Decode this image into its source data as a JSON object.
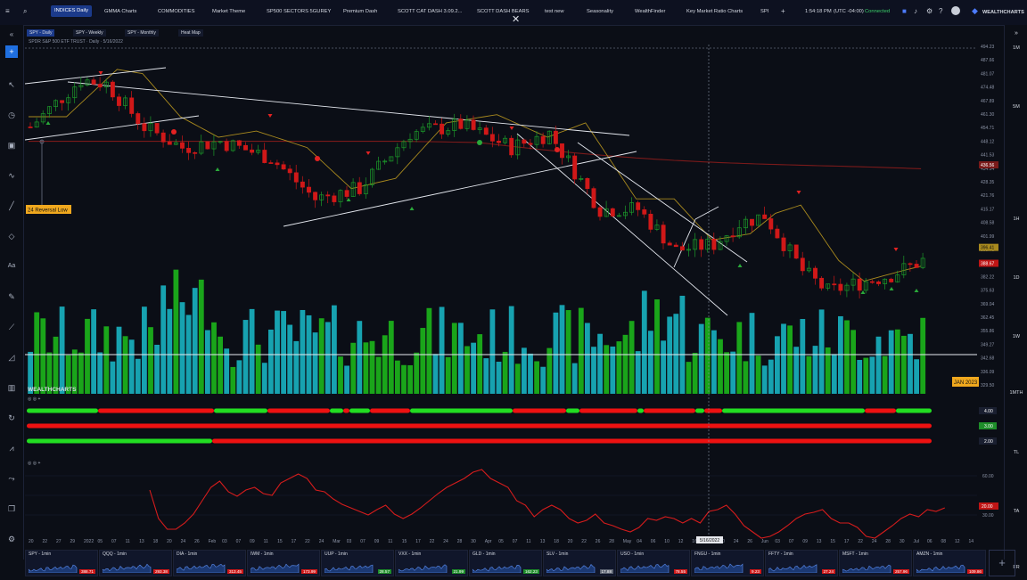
{
  "topbar": {
    "tabs": [
      "INDICES Daily",
      "GMMA Charts",
      "COMMODITIES",
      "Market Theme",
      "SP500 SECTORS 5GUREY",
      "Premium Dash",
      "SCOTT CAT DASH 3.09.2...",
      "SCOTT DASH BEARS",
      "test new",
      "Seasonality",
      "WealthFinder",
      "Key Market Ratio Charts",
      "SPI"
    ],
    "time": "1:54:18 PM",
    "timezone": "(UTC -04:00)",
    "status": "Connected",
    "brand": "WEALTHCHARTS"
  },
  "subtabs": [
    "SPY - Daily",
    "SPY - Weekly",
    "SPY - Monthly",
    "Heat Map"
  ],
  "legend": {
    "symbol_line": "SPDR S&P 500 ETF TRUST · Daily · 5/16/2022",
    "annotation": "24 Reversal Low",
    "watermark": "WEALTHCHARTS",
    "date_tag": "JAN 2023",
    "crosshair_date": "5/16/2022"
  },
  "price_axis": {
    "ticks": [
      "494.23",
      "487.66",
      "481.07",
      "474.48",
      "467.89",
      "461.30",
      "454.71",
      "448.12",
      "441.53",
      "434.94",
      "428.35",
      "421.76",
      "415.17",
      "408.58",
      "401.99",
      "395.40",
      "388.81",
      "382.22",
      "375.63",
      "369.04",
      "362.45",
      "355.86",
      "349.27",
      "342.68",
      "336.09",
      "329.50"
    ],
    "last_price": "388.67",
    "tag_ma_long": "436.56",
    "tag_ma_short": "396.41"
  },
  "signal_axis": {
    "top": "4.00",
    "mid": "3.00",
    "low": "2.00"
  },
  "oscillator_axis": {
    "top": "60.00",
    "mid": "30.00",
    "value": "20.00"
  },
  "x_axis": [
    "20",
    "22",
    "27",
    "29",
    "2022",
    "05",
    "07",
    "11",
    "13",
    "18",
    "20",
    "24",
    "26",
    "Feb",
    "03",
    "07",
    "09",
    "11",
    "15",
    "17",
    "22",
    "24",
    "Mar",
    "03",
    "07",
    "09",
    "11",
    "15",
    "17",
    "22",
    "24",
    "28",
    "30",
    "Apr",
    "05",
    "07",
    "11",
    "13",
    "18",
    "20",
    "22",
    "26",
    "28",
    "May",
    "04",
    "06",
    "10",
    "12",
    "16",
    "18",
    "20",
    "24",
    "26",
    "Jun",
    "03",
    "07",
    "09",
    "13",
    "15",
    "17",
    "22",
    "24",
    "28",
    "30",
    "Jul",
    "06",
    "08",
    "12",
    "14"
  ],
  "timeframes": [
    "1M",
    "5M",
    "1H",
    "1D",
    "1W",
    "1MTH",
    "TL",
    "TA",
    "FR"
  ],
  "watchlist": [
    {
      "name": "SPY - 1min",
      "value": "388.71",
      "color": "#d01818"
    },
    {
      "name": "QQQ - 1min",
      "value": "293.38",
      "color": "#d01818"
    },
    {
      "name": "DIA - 1min",
      "value": "313.45",
      "color": "#d01818"
    },
    {
      "name": "IWM - 1min",
      "value": "173.99",
      "color": "#d01818"
    },
    {
      "name": "UUP - 1min",
      "value": "28.57",
      "color": "#1e8e2a"
    },
    {
      "name": "VXX - 1min",
      "value": "21.99",
      "color": "#1e8e2a"
    },
    {
      "name": "GLD - 1min",
      "value": "162.23",
      "color": "#1e8e2a"
    },
    {
      "name": "SLV - 1min",
      "value": "17.88",
      "color": "#606775"
    },
    {
      "name": "USO - 1min",
      "value": "78.55",
      "color": "#d01818"
    },
    {
      "name": "FNGU - 1min",
      "value": "9.23",
      "color": "#d01818"
    },
    {
      "name": "FFTY - 1min",
      "value": "27.24",
      "color": "#d01818"
    },
    {
      "name": "MSFT - 1min",
      "value": "257.96",
      "color": "#d01818"
    },
    {
      "name": "AMZN - 1min",
      "value": "109.86",
      "color": "#d01818"
    }
  ],
  "colors": {
    "up": "#1c9a2a",
    "down": "#d01818",
    "volume_up": "#1aa51a",
    "volume_down": "#17a2b0",
    "ma_long": "#7a1a1a",
    "ma_short": "#a8891e",
    "signal_red": "#ee1111",
    "signal_green": "#22dd22"
  }
}
